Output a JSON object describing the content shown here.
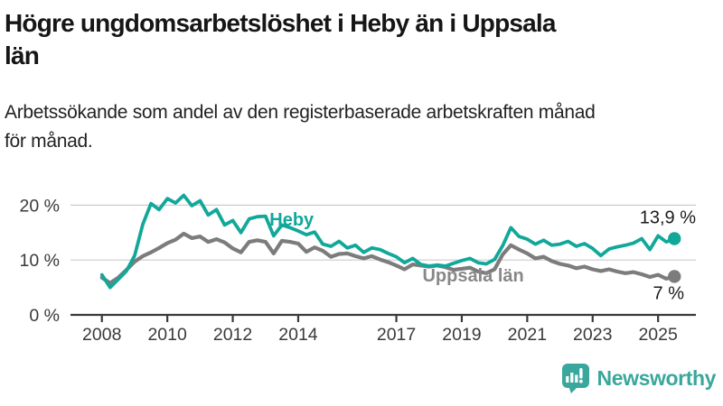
{
  "header": {
    "title_line1": "Högre ungdomsarbetslöshet i Heby än i Uppsala",
    "title_line2": "län",
    "subtitle_line1": "Arbetssökande som andel av den registerbaserade arbetskraften månad",
    "subtitle_line2": "för månad."
  },
  "chart_data": {
    "type": "line",
    "title": "Högre ungdomsarbetslöshet i Heby än i Uppsala län",
    "subtitle": "Arbetssökande som andel av den registerbaserade arbetskraften månad för månad.",
    "unit": "%",
    "grid": true,
    "x_start": 2008.0,
    "x_step": 0.25,
    "x_ticks": [
      2008,
      2010,
      2012,
      2014,
      2017,
      2019,
      2021,
      2023,
      2025
    ],
    "y_ticks": [
      {
        "value": 0,
        "label": "0 %"
      },
      {
        "value": 10,
        "label": "10 %"
      },
      {
        "value": 20,
        "label": "20 %"
      }
    ],
    "ylim": [
      0,
      23.5
    ],
    "series": [
      {
        "name": "Heby",
        "color": "#11a89a",
        "values": [
          7.3,
          5.0,
          6.5,
          8.0,
          10.8,
          16.5,
          20.3,
          19.2,
          21.2,
          20.4,
          21.8,
          19.9,
          20.8,
          18.2,
          19.2,
          16.4,
          17.2,
          15.0,
          17.5,
          17.9,
          18.0,
          14.4,
          16.4,
          15.9,
          15.3,
          14.6,
          15.1,
          12.9,
          12.5,
          13.4,
          12.2,
          12.7,
          11.4,
          12.2,
          11.9,
          11.2,
          10.6,
          9.5,
          10.3,
          9.2,
          8.9,
          9.1,
          8.9,
          9.4,
          9.9,
          10.3,
          9.5,
          9.3,
          10.1,
          12.6,
          15.9,
          14.3,
          13.8,
          12.9,
          13.6,
          12.7,
          12.9,
          13.4,
          12.5,
          13.0,
          12.1,
          10.8,
          12.0,
          12.4,
          12.7,
          13.1,
          13.9,
          11.9,
          14.4,
          13.3,
          13.9
        ]
      },
      {
        "name": "Uppsala län",
        "color": "#7c7c7c",
        "values": [
          6.8,
          5.8,
          6.8,
          8.2,
          9.7,
          10.7,
          11.4,
          12.2,
          13.1,
          13.7,
          14.8,
          14.0,
          14.3,
          13.3,
          13.8,
          13.2,
          12.1,
          11.4,
          13.3,
          13.6,
          13.3,
          11.2,
          13.5,
          13.3,
          13.0,
          11.5,
          12.3,
          11.7,
          10.6,
          11.1,
          11.2,
          10.7,
          10.3,
          10.7,
          10.1,
          9.6,
          9.0,
          8.3,
          9.2,
          9.0,
          8.8,
          9.0,
          8.7,
          8.2,
          8.4,
          8.6,
          7.9,
          7.6,
          8.3,
          11.0,
          12.7,
          11.9,
          11.2,
          10.3,
          10.6,
          9.8,
          9.3,
          9.0,
          8.5,
          8.8,
          8.3,
          8.0,
          8.3,
          7.9,
          7.6,
          7.8,
          7.4,
          6.9,
          7.3,
          6.6,
          7.0
        ]
      }
    ],
    "series_labels": [
      {
        "text": "Heby",
        "x": 2013.8,
        "y": 17.4,
        "color": "#11a89a"
      },
      {
        "text": "Uppsala län",
        "x": 2019.35,
        "y": 7.2,
        "color": "#888888"
      }
    ],
    "end_labels": [
      {
        "text": "13,9 %"
      },
      {
        "text": "7 %"
      }
    ]
  },
  "footer": {
    "brand": "Newsworthy",
    "brand_color": "#3aa79c",
    "logo_icon": "bar-chart-speech-bubble"
  }
}
